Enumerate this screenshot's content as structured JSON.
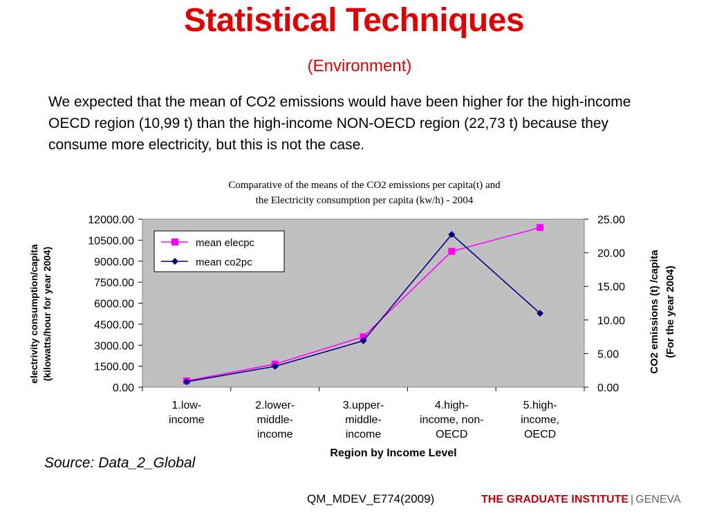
{
  "slide": {
    "title": "Statistical Techniques",
    "subtitle": "(Environment)",
    "body": "We expected that the mean of CO2 emissions would have been higher for the high-income OECD region (10,99 t) than the high-income NON-OECD region (22,73 t) because they consume more electricity, but this is not the case.",
    "source": "Source: Data_2_Global",
    "footer_code": "QM_MDEV_E774(2009)",
    "logo_main": "THE GRADUATE INSTITUTE",
    "logo_sep": "|",
    "logo_city": "GENEVA"
  },
  "colors": {
    "title": "#e00000",
    "plot_bg": "#c0c0c0",
    "elecpc": "#ff00ff",
    "co2pc": "#000080",
    "logo": "#c0000f"
  },
  "chart_data": {
    "type": "line",
    "title_lines": [
      "Comparative of the means of the CO2 emissions per capita(t) and",
      "the Electricity consumption per capita (kw/h) - 2004"
    ],
    "categories": [
      [
        "1.low-",
        "income"
      ],
      [
        "2.lower-",
        "middle-",
        "income"
      ],
      [
        "3.upper-",
        "middle-",
        "income"
      ],
      [
        "4.high-",
        "income, non-",
        "OECD"
      ],
      [
        "5.high-",
        "income,",
        "OECD"
      ]
    ],
    "xlabel": "Region by Income Level",
    "ylabel_left": [
      "electrivity consumption/capita",
      "(kilowatts/hour for year 2004)"
    ],
    "ylabel_right": [
      "CO2 emissions (t) /capita",
      "(For the year 2004)"
    ],
    "y_left": {
      "min": 0,
      "max": 12000,
      "step": 1500,
      "ticks": [
        "0.00",
        "1500.00",
        "3000.00",
        "4500.00",
        "6000.00",
        "7500.00",
        "9000.00",
        "10500.00",
        "12000.00"
      ]
    },
    "y_right": {
      "min": 0,
      "max": 25,
      "step": 5,
      "ticks": [
        "0.00",
        "5.00",
        "10.00",
        "15.00",
        "20.00",
        "25.00"
      ]
    },
    "grid": false,
    "legend_position": "top-left",
    "series": [
      {
        "name": "mean elecpc",
        "axis": "left",
        "marker": "square",
        "values": [
          450,
          1650,
          3600,
          9700,
          11400
        ]
      },
      {
        "name": "mean co2pc",
        "axis": "right",
        "marker": "diamond",
        "values": [
          0.8,
          3.1,
          6.9,
          22.73,
          10.99
        ]
      }
    ]
  }
}
